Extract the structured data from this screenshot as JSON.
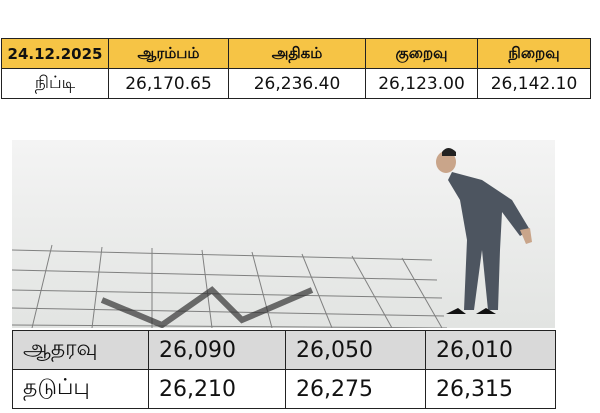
{
  "top_table": {
    "header": [
      "24.12.2025",
      "ஆரம்பம்",
      "அதிகம்",
      "குறைவு",
      "நிறைவு"
    ],
    "rows": [
      [
        "நிப்டி",
        "26,170.65",
        "26,236.40",
        "26,123.00",
        "26,142.10"
      ]
    ]
  },
  "levels_table": {
    "rows": [
      [
        "ஆதரவு",
        "26,090",
        "26,050",
        "26,010"
      ],
      [
        "தடுப்பு",
        "26,210",
        "26,275",
        "26,315"
      ]
    ]
  }
}
